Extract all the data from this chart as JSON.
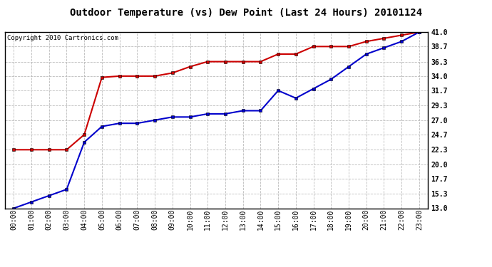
{
  "title": "Outdoor Temperature (vs) Dew Point (Last 24 Hours) 20101124",
  "copyright": "Copyright 2010 Cartronics.com",
  "x_labels": [
    "00:00",
    "01:00",
    "02:00",
    "03:00",
    "04:00",
    "05:00",
    "06:00",
    "07:00",
    "08:00",
    "09:00",
    "10:00",
    "11:00",
    "12:00",
    "13:00",
    "14:00",
    "15:00",
    "16:00",
    "17:00",
    "18:00",
    "19:00",
    "20:00",
    "21:00",
    "22:00",
    "23:00"
  ],
  "temp_data": [
    22.3,
    22.3,
    22.3,
    22.3,
    24.7,
    33.8,
    34.0,
    34.0,
    34.0,
    34.5,
    35.5,
    36.3,
    36.3,
    36.3,
    36.3,
    37.5,
    37.5,
    38.7,
    38.7,
    38.7,
    39.5,
    40.0,
    40.5,
    41.0
  ],
  "dew_data": [
    13.0,
    14.0,
    15.0,
    16.0,
    23.5,
    26.0,
    26.5,
    26.5,
    27.0,
    27.5,
    27.5,
    28.0,
    28.0,
    28.5,
    28.5,
    31.7,
    30.5,
    32.0,
    33.5,
    35.5,
    37.5,
    38.5,
    39.5,
    41.0
  ],
  "temp_color": "#cc0000",
  "dew_color": "#0000cc",
  "bg_color": "#ffffff",
  "grid_color": "#bbbbbb",
  "ylim_min": 13.0,
  "ylim_max": 41.0,
  "yticks": [
    13.0,
    15.3,
    17.7,
    20.0,
    22.3,
    24.7,
    27.0,
    29.3,
    31.7,
    34.0,
    36.3,
    38.7,
    41.0
  ],
  "marker": "s",
  "marker_size": 3,
  "linewidth": 1.5,
  "title_fontsize": 10,
  "tick_fontsize": 7,
  "copyright_fontsize": 6.5
}
